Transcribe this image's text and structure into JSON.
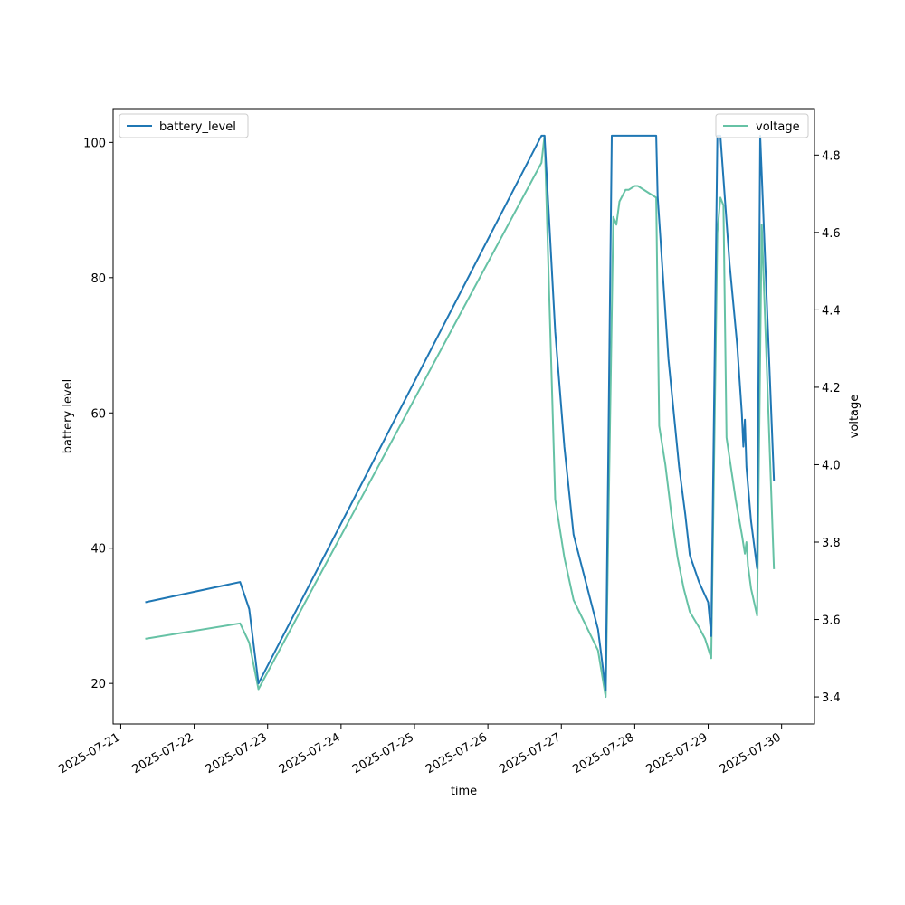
{
  "chart_data": {
    "type": "line",
    "xlabel": "time",
    "ylabel_left": "battery level",
    "ylabel_right": "voltage",
    "x_ticks": [
      "2025-07-21",
      "2025-07-22",
      "2025-07-23",
      "2025-07-24",
      "2025-07-25",
      "2025-07-26",
      "2025-07-27",
      "2025-07-28",
      "2025-07-29",
      "2025-07-30"
    ],
    "xlim": [
      "2025-07-20T21:30",
      "2025-07-30T10:45"
    ],
    "ylim_left": [
      14,
      105
    ],
    "ylim_right": [
      3.33,
      4.92
    ],
    "y_ticks_left": [
      "20",
      "40",
      "60",
      "80",
      "100"
    ],
    "y_ticks_right": [
      "3.4",
      "3.6",
      "3.8",
      "4.0",
      "4.2",
      "4.4",
      "4.6",
      "4.8"
    ],
    "legend_placement_left": "upper left",
    "legend_placement_right": "upper right",
    "grid": false,
    "series": [
      {
        "name": "battery_level",
        "axis": "left",
        "color": "#1f77b4",
        "points": [
          [
            "2025-07-21T08:00",
            32
          ],
          [
            "2025-07-22T15:00",
            35
          ],
          [
            "2025-07-22T18:00",
            31
          ],
          [
            "2025-07-22T21:00",
            20
          ],
          [
            "2025-07-26T17:30",
            101
          ],
          [
            "2025-07-26T18:30",
            101
          ],
          [
            "2025-07-26T22:00",
            72
          ],
          [
            "2025-07-27T01:00",
            55
          ],
          [
            "2025-07-27T04:00",
            42
          ],
          [
            "2025-07-27T12:00",
            28
          ],
          [
            "2025-07-27T14:30",
            19
          ],
          [
            "2025-07-27T16:30",
            101
          ],
          [
            "2025-07-28T07:00",
            101
          ],
          [
            "2025-07-28T07:30",
            92
          ],
          [
            "2025-07-28T11:00",
            68
          ],
          [
            "2025-07-28T14:30",
            52
          ],
          [
            "2025-07-28T16:30",
            45
          ],
          [
            "2025-07-28T18:00",
            39
          ],
          [
            "2025-07-28T21:00",
            35
          ],
          [
            "2025-07-29T00:00",
            32
          ],
          [
            "2025-07-29T01:00",
            27
          ],
          [
            "2025-07-29T03:00",
            101
          ],
          [
            "2025-07-29T04:00",
            101
          ],
          [
            "2025-07-29T07:00",
            82
          ],
          [
            "2025-07-29T09:30",
            70
          ],
          [
            "2025-07-29T11:00",
            60
          ],
          [
            "2025-07-29T11:30",
            55
          ],
          [
            "2025-07-29T12:00",
            59
          ],
          [
            "2025-07-29T12:30",
            52
          ],
          [
            "2025-07-29T14:00",
            44
          ],
          [
            "2025-07-29T16:00",
            37
          ],
          [
            "2025-07-29T17:00",
            101
          ],
          [
            "2025-07-29T21:30",
            50
          ]
        ]
      },
      {
        "name": "voltage",
        "axis": "right",
        "color": "#66c2a5",
        "points": [
          [
            "2025-07-21T08:00",
            3.55
          ],
          [
            "2025-07-22T15:00",
            3.59
          ],
          [
            "2025-07-22T18:00",
            3.54
          ],
          [
            "2025-07-22T21:00",
            3.42
          ],
          [
            "2025-07-26T17:30",
            4.78
          ],
          [
            "2025-07-26T18:30",
            4.85
          ],
          [
            "2025-07-26T22:00",
            3.91
          ],
          [
            "2025-07-27T01:00",
            3.76
          ],
          [
            "2025-07-27T04:00",
            3.65
          ],
          [
            "2025-07-27T12:00",
            3.52
          ],
          [
            "2025-07-27T14:30",
            3.4
          ],
          [
            "2025-07-27T17:00",
            4.64
          ],
          [
            "2025-07-27T18:00",
            4.62
          ],
          [
            "2025-07-27T19:00",
            4.68
          ],
          [
            "2025-07-27T21:00",
            4.71
          ],
          [
            "2025-07-27T22:00",
            4.71
          ],
          [
            "2025-07-28T00:00",
            4.72
          ],
          [
            "2025-07-28T01:00",
            4.72
          ],
          [
            "2025-07-28T05:00",
            4.7
          ],
          [
            "2025-07-28T07:00",
            4.69
          ],
          [
            "2025-07-28T08:00",
            4.1
          ],
          [
            "2025-07-28T10:00",
            4.0
          ],
          [
            "2025-07-28T12:00",
            3.87
          ],
          [
            "2025-07-28T14:00",
            3.76
          ],
          [
            "2025-07-28T16:00",
            3.68
          ],
          [
            "2025-07-28T18:00",
            3.62
          ],
          [
            "2025-07-28T21:00",
            3.58
          ],
          [
            "2025-07-28T23:00",
            3.55
          ],
          [
            "2025-07-29T01:00",
            3.5
          ],
          [
            "2025-07-29T03:00",
            4.6
          ],
          [
            "2025-07-29T04:00",
            4.69
          ],
          [
            "2025-07-29T05:00",
            4.67
          ],
          [
            "2025-07-29T06:00",
            4.07
          ],
          [
            "2025-07-29T09:00",
            3.91
          ],
          [
            "2025-07-29T11:00",
            3.82
          ],
          [
            "2025-07-29T12:00",
            3.77
          ],
          [
            "2025-07-29T12:30",
            3.8
          ],
          [
            "2025-07-29T13:00",
            3.74
          ],
          [
            "2025-07-29T14:00",
            3.68
          ],
          [
            "2025-07-29T16:00",
            3.61
          ],
          [
            "2025-07-29T17:30",
            4.62
          ],
          [
            "2025-07-29T21:30",
            3.73
          ]
        ]
      }
    ]
  }
}
